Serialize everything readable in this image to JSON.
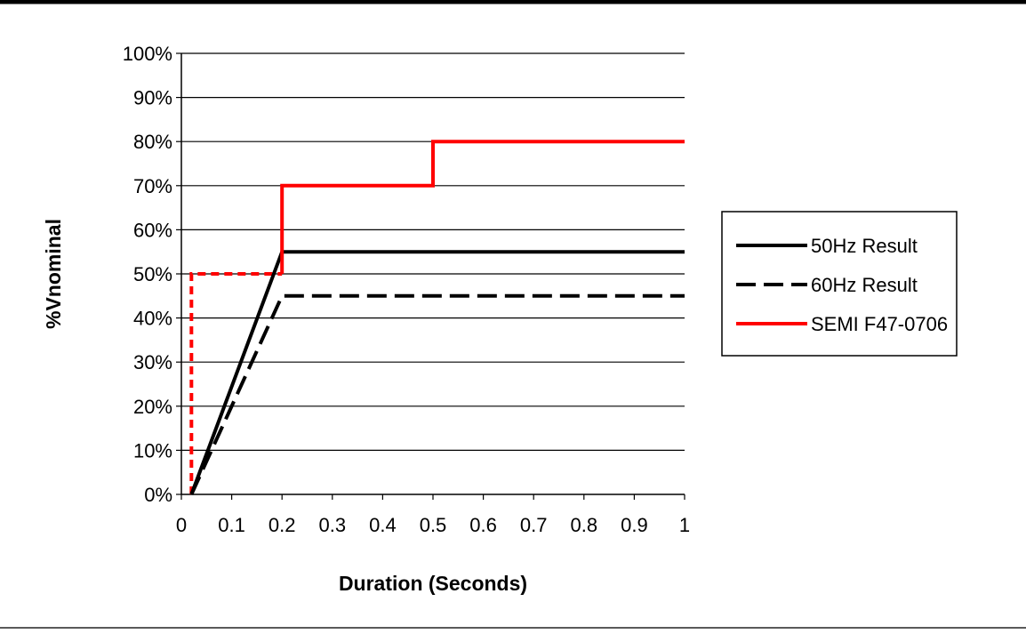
{
  "chart_data": {
    "type": "line",
    "title": "",
    "xlabel": "Duration (Seconds)",
    "ylabel": "%Vnominal",
    "xlim": [
      0,
      1
    ],
    "ylim": [
      0,
      100
    ],
    "x_ticks": [
      "0",
      "0.1",
      "0.2",
      "0.3",
      "0.4",
      "0.5",
      "0.6",
      "0.7",
      "0.8",
      "0.9",
      "1"
    ],
    "y_ticks": [
      "0%",
      "10%",
      "20%",
      "30%",
      "40%",
      "50%",
      "60%",
      "70%",
      "80%",
      "90%",
      "100%"
    ],
    "grid": "horizontal",
    "legend_position": "right",
    "series": [
      {
        "name": "50Hz Result",
        "color": "#000000",
        "style": "solid",
        "points": [
          [
            0.02,
            0
          ],
          [
            0.2,
            55
          ],
          [
            1,
            55
          ]
        ]
      },
      {
        "name": "60Hz Result",
        "color": "#000000",
        "style": "dashed",
        "points": [
          [
            0.02,
            0
          ],
          [
            0.2,
            45
          ],
          [
            1,
            45
          ]
        ]
      },
      {
        "name": "SEMI F47-0706",
        "color": "#ff0000",
        "style": "solid",
        "points": [
          [
            0.2,
            50
          ],
          [
            0.2,
            70
          ],
          [
            0.5,
            70
          ],
          [
            0.5,
            80
          ],
          [
            1,
            80
          ]
        ]
      },
      {
        "color": "#ff0000",
        "style": "dotted",
        "points": [
          [
            0.02,
            0
          ],
          [
            0.02,
            50
          ],
          [
            0.2,
            50
          ]
        ]
      }
    ]
  }
}
